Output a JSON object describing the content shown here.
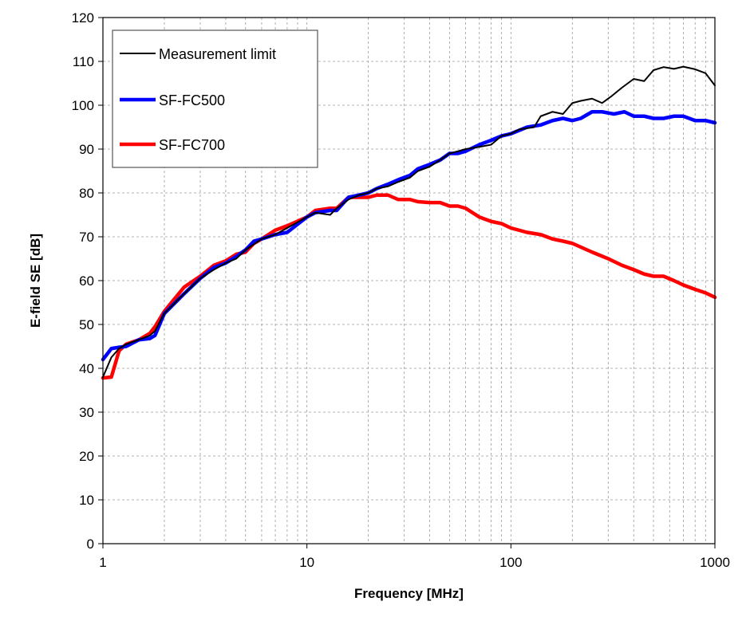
{
  "chart_data": {
    "type": "line",
    "xlabel": "Frequency [MHz]",
    "ylabel": "E-field SE [dB]",
    "xscale": "log",
    "xlim": [
      1,
      1000
    ],
    "ylim": [
      0,
      120
    ],
    "x_ticks": [
      "1",
      "10",
      "100",
      "1000"
    ],
    "y_ticks": [
      "0",
      "10",
      "20",
      "30",
      "40",
      "50",
      "60",
      "70",
      "80",
      "90",
      "100",
      "110",
      "120"
    ],
    "grid": true,
    "legend_position": "top-left",
    "series": [
      {
        "name": "Measurement limit",
        "color": "#000000",
        "points": [
          [
            1,
            38
          ],
          [
            1.1,
            42.5
          ],
          [
            1.2,
            44.5
          ],
          [
            1.3,
            45.5
          ],
          [
            1.5,
            46.5
          ],
          [
            1.7,
            47.5
          ],
          [
            1.8,
            48.5
          ],
          [
            2,
            52.5
          ],
          [
            2.5,
            57
          ],
          [
            3,
            60.5
          ],
          [
            3.5,
            62.5
          ],
          [
            4,
            64
          ],
          [
            4.5,
            65
          ],
          [
            5,
            67
          ],
          [
            6,
            69.5
          ],
          [
            7,
            70.5
          ],
          [
            8,
            72
          ],
          [
            10,
            74.5
          ],
          [
            11,
            75.5
          ],
          [
            13,
            75
          ],
          [
            14,
            76.5
          ],
          [
            16,
            78.5
          ],
          [
            18,
            79.5
          ],
          [
            20,
            80
          ],
          [
            22,
            81
          ],
          [
            25,
            81.5
          ],
          [
            28,
            82.5
          ],
          [
            32,
            83.5
          ],
          [
            35,
            85
          ],
          [
            40,
            86
          ],
          [
            45,
            87.5
          ],
          [
            50,
            89
          ],
          [
            55,
            89.5
          ],
          [
            60,
            90
          ],
          [
            70,
            90.5
          ],
          [
            80,
            91
          ],
          [
            90,
            93
          ],
          [
            100,
            93.5
          ],
          [
            110,
            94.5
          ],
          [
            130,
            95
          ],
          [
            140,
            97.5
          ],
          [
            160,
            98.5
          ],
          [
            180,
            98
          ],
          [
            200,
            100.5
          ],
          [
            220,
            101
          ],
          [
            250,
            101.5
          ],
          [
            280,
            100.5
          ],
          [
            310,
            102
          ],
          [
            350,
            104
          ],
          [
            400,
            106
          ],
          [
            450,
            105.5
          ],
          [
            500,
            108
          ],
          [
            560,
            108.7
          ],
          [
            630,
            108.3
          ],
          [
            700,
            108.8
          ],
          [
            800,
            108.2
          ],
          [
            900,
            107.3
          ],
          [
            1000,
            104.5
          ]
        ]
      },
      {
        "name": "SF-FC500",
        "color": "#0000ff",
        "points": [
          [
            1,
            42
          ],
          [
            1.1,
            44.5
          ],
          [
            1.2,
            44.8
          ],
          [
            1.3,
            45
          ],
          [
            1.5,
            46.5
          ],
          [
            1.7,
            46.8
          ],
          [
            1.8,
            47.5
          ],
          [
            2,
            52.5
          ],
          [
            2.5,
            57
          ],
          [
            3,
            60.5
          ],
          [
            3.5,
            63
          ],
          [
            4,
            64
          ],
          [
            4.5,
            65.5
          ],
          [
            5,
            67
          ],
          [
            5.5,
            69
          ],
          [
            6,
            69.5
          ],
          [
            7,
            70.5
          ],
          [
            8,
            71
          ],
          [
            10,
            74.5
          ],
          [
            11,
            75.5
          ],
          [
            13,
            76
          ],
          [
            14,
            76
          ],
          [
            16,
            79
          ],
          [
            18,
            79.5
          ],
          [
            20,
            80
          ],
          [
            22,
            81
          ],
          [
            25,
            82
          ],
          [
            28,
            83
          ],
          [
            32,
            84
          ],
          [
            35,
            85.5
          ],
          [
            40,
            86.5
          ],
          [
            45,
            87.5
          ],
          [
            50,
            89
          ],
          [
            55,
            89
          ],
          [
            60,
            89.5
          ],
          [
            70,
            91
          ],
          [
            80,
            92
          ],
          [
            90,
            93
          ],
          [
            100,
            93.5
          ],
          [
            120,
            95
          ],
          [
            140,
            95.5
          ],
          [
            160,
            96.5
          ],
          [
            180,
            97
          ],
          [
            200,
            96.5
          ],
          [
            220,
            97
          ],
          [
            250,
            98.5
          ],
          [
            280,
            98.5
          ],
          [
            320,
            98
          ],
          [
            360,
            98.5
          ],
          [
            400,
            97.5
          ],
          [
            450,
            97.5
          ],
          [
            500,
            97
          ],
          [
            560,
            97
          ],
          [
            630,
            97.5
          ],
          [
            700,
            97.5
          ],
          [
            800,
            96.5
          ],
          [
            900,
            96.5
          ],
          [
            1000,
            96
          ]
        ]
      },
      {
        "name": "SF-FC700",
        "color": "#ff0000",
        "points": [
          [
            1,
            37.8
          ],
          [
            1.1,
            38
          ],
          [
            1.2,
            44
          ],
          [
            1.3,
            45.5
          ],
          [
            1.5,
            46.5
          ],
          [
            1.7,
            48
          ],
          [
            1.8,
            49.5
          ],
          [
            2,
            53
          ],
          [
            2.5,
            58.5
          ],
          [
            3,
            61
          ],
          [
            3.5,
            63.5
          ],
          [
            4,
            64.5
          ],
          [
            4.5,
            66
          ],
          [
            5,
            66.5
          ],
          [
            5.5,
            68.5
          ],
          [
            6,
            69.5
          ],
          [
            7,
            71.5
          ],
          [
            8,
            72.5
          ],
          [
            10,
            74.5
          ],
          [
            11,
            76
          ],
          [
            13,
            76.5
          ],
          [
            14,
            76.5
          ],
          [
            16,
            79
          ],
          [
            18,
            79
          ],
          [
            20,
            79
          ],
          [
            22,
            79.5
          ],
          [
            25,
            79.5
          ],
          [
            28,
            78.5
          ],
          [
            32,
            78.5
          ],
          [
            35,
            78
          ],
          [
            40,
            77.8
          ],
          [
            45,
            77.8
          ],
          [
            50,
            77
          ],
          [
            55,
            77
          ],
          [
            60,
            76.5
          ],
          [
            70,
            74.5
          ],
          [
            80,
            73.5
          ],
          [
            90,
            73
          ],
          [
            100,
            72
          ],
          [
            120,
            71
          ],
          [
            140,
            70.5
          ],
          [
            160,
            69.5
          ],
          [
            180,
            69
          ],
          [
            200,
            68.5
          ],
          [
            250,
            66.5
          ],
          [
            300,
            65
          ],
          [
            350,
            63.5
          ],
          [
            400,
            62.5
          ],
          [
            450,
            61.5
          ],
          [
            500,
            61
          ],
          [
            560,
            61
          ],
          [
            630,
            60
          ],
          [
            700,
            59
          ],
          [
            800,
            58
          ],
          [
            900,
            57.2
          ],
          [
            1000,
            56.2
          ]
        ]
      }
    ]
  }
}
